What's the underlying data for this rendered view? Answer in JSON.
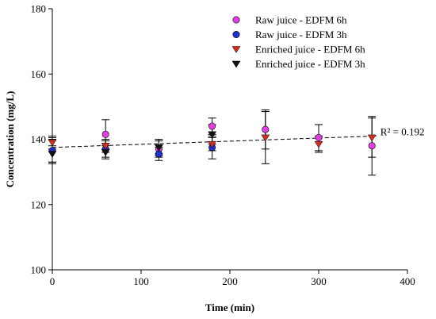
{
  "chart_data": {
    "type": "scatter",
    "xlabel": "Time (min)",
    "ylabel": "Concentration (mg/L)",
    "xlim": [
      0,
      400
    ],
    "ylim": [
      100,
      180
    ],
    "x_ticks": [
      0,
      100,
      200,
      300,
      400
    ],
    "y_ticks": [
      100,
      120,
      140,
      160,
      180
    ],
    "x_tick_labels": [
      "0",
      "100",
      "200",
      "300",
      "400"
    ],
    "y_tick_labels": [
      "100",
      "120",
      "140",
      "160",
      "180"
    ],
    "grid": false,
    "legend_position": "top-right",
    "series": [
      {
        "name": "Raw juice - EDFM 6h",
        "marker": "circle",
        "color": "#e040e0",
        "points": [
          {
            "x": 0,
            "y": 136.5,
            "err": 4
          },
          {
            "x": 60,
            "y": 141.5,
            "err": 4.5
          },
          {
            "x": 120,
            "y": 137,
            "err": 2.5
          },
          {
            "x": 180,
            "y": 144,
            "err": 2.5
          },
          {
            "x": 240,
            "y": 143,
            "err": 6
          },
          {
            "x": 300,
            "y": 140.5,
            "err": 4
          },
          {
            "x": 360,
            "y": 138,
            "err": 9
          }
        ]
      },
      {
        "name": "Raw juice - EDFM 3h",
        "marker": "circle",
        "color": "#2030d0",
        "points": [
          {
            "x": 0,
            "y": 136.5,
            "err": 3.5
          },
          {
            "x": 60,
            "y": 137,
            "err": 2.5
          },
          {
            "x": 120,
            "y": 135.5,
            "err": 2
          },
          {
            "x": 180,
            "y": 137.5,
            "err": 3.5
          }
        ]
      },
      {
        "name": "Enriched juice - EDFM 6h",
        "marker": "triangle-down",
        "color": "#d03020",
        "points": [
          {
            "x": 0,
            "y": 139,
            "err": 2
          },
          {
            "x": 60,
            "y": 138,
            "err": 2
          },
          {
            "x": 120,
            "y": 137.5,
            "err": 2
          },
          {
            "x": 180,
            "y": 138.5,
            "err": 2
          },
          {
            "x": 240,
            "y": 140.5,
            "err": 8
          },
          {
            "x": 300,
            "y": 138.5,
            "err": 2.5
          },
          {
            "x": 360,
            "y": 140.5,
            "err": 6
          }
        ]
      },
      {
        "name": "Enriched juice - EDFM 3h",
        "marker": "triangle-down",
        "color": "#101010",
        "points": [
          {
            "x": 0,
            "y": 135.5,
            "err": 2.5
          },
          {
            "x": 60,
            "y": 136,
            "err": 2
          },
          {
            "x": 120,
            "y": 137.5,
            "err": 2.5
          },
          {
            "x": 180,
            "y": 141.5,
            "err": 3
          }
        ]
      }
    ],
    "trendline": {
      "style": "dashed",
      "color": "#000000",
      "from": {
        "x": 0,
        "y": 137.5
      },
      "to": {
        "x": 365,
        "y": 141
      }
    },
    "annotation": "R² = 0.192"
  }
}
